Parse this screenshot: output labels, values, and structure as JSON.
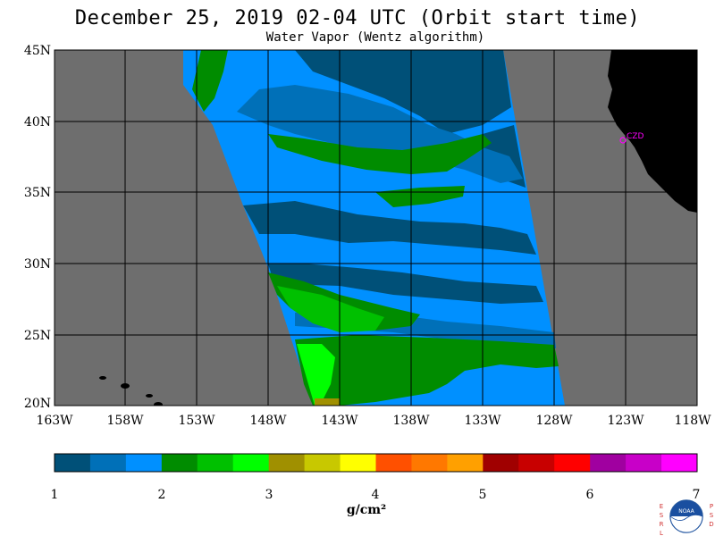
{
  "title": "December 25, 2019  02-04 UTC  (Orbit start time)",
  "subtitle": "Water Vapor (Wentz algorithm)",
  "map": {
    "lat_range": [
      20,
      45
    ],
    "lon_range": [
      -163,
      -118
    ],
    "lat_ticks": [
      "45N",
      "40N",
      "35N",
      "30N",
      "25N",
      "20N"
    ],
    "lon_ticks": [
      "163W",
      "158W",
      "153W",
      "148W",
      "143W",
      "138W",
      "133W",
      "128W",
      "123W",
      "118W"
    ],
    "station_label": "CZD",
    "colors": {
      "ocean_nodata": "#6e6e6e",
      "land": "#000000",
      "grid": "#000000",
      "station": "#ff00ff"
    }
  },
  "colorbar": {
    "unit": "g/cm²",
    "labels": [
      "1",
      "2",
      "3",
      "4",
      "5",
      "6",
      "7"
    ],
    "colors": [
      "#005078",
      "#0070b8",
      "#0090ff",
      "#008c00",
      "#00c000",
      "#00ff00",
      "#a09000",
      "#c8c800",
      "#ffff00",
      "#ff5000",
      "#ff7800",
      "#ffa000",
      "#a00000",
      "#c80000",
      "#ff0000",
      "#a000a0",
      "#c800c8",
      "#ff00ff"
    ]
  },
  "logo": {
    "left_text": "ESRL",
    "right_text": "PSD",
    "center_text": "NOAA"
  }
}
